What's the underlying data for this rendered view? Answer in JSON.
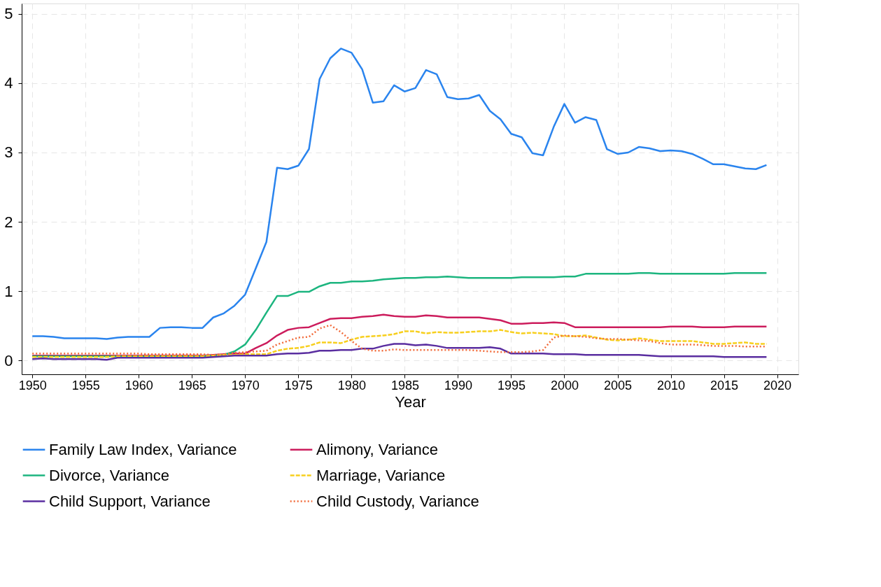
{
  "chart_data": {
    "type": "line",
    "xlabel": "Year",
    "x": [
      1950,
      1951,
      1952,
      1953,
      1954,
      1955,
      1956,
      1957,
      1958,
      1959,
      1960,
      1961,
      1962,
      1963,
      1964,
      1965,
      1966,
      1967,
      1968,
      1969,
      1970,
      1971,
      1972,
      1973,
      1974,
      1975,
      1976,
      1977,
      1978,
      1979,
      1980,
      1981,
      1982,
      1983,
      1984,
      1985,
      1986,
      1987,
      1988,
      1989,
      1990,
      1991,
      1992,
      1993,
      1994,
      1995,
      1996,
      1997,
      1998,
      1999,
      2000,
      2001,
      2002,
      2003,
      2004,
      2005,
      2006,
      2007,
      2008,
      2009,
      2010,
      2011,
      2012,
      2013,
      2014,
      2015,
      2016,
      2017,
      2018,
      2019
    ],
    "xlim": [
      1949,
      2022
    ],
    "xticks": [
      1950,
      1955,
      1960,
      1965,
      1970,
      1975,
      1980,
      1985,
      1990,
      1995,
      2000,
      2005,
      2010,
      2015,
      2020
    ],
    "ylim": [
      -0.2,
      5.15
    ],
    "yticks": [
      0,
      1,
      2,
      3,
      4,
      5
    ],
    "grid": true,
    "legend": "bottom",
    "series": [
      {
        "name": "Family Law Index, Variance",
        "color": "#2a84ee",
        "line_style": "solid",
        "values": [
          0.35,
          0.35,
          0.34,
          0.32,
          0.32,
          0.32,
          0.32,
          0.31,
          0.33,
          0.34,
          0.34,
          0.34,
          0.47,
          0.48,
          0.48,
          0.47,
          0.47,
          0.62,
          0.68,
          0.79,
          0.95,
          1.33,
          1.71,
          2.78,
          2.76,
          2.81,
          3.05,
          4.06,
          4.36,
          4.5,
          4.44,
          4.2,
          3.72,
          3.74,
          3.97,
          3.88,
          3.93,
          4.19,
          4.13,
          3.8,
          3.77,
          3.78,
          3.83,
          3.6,
          3.48,
          3.27,
          3.22,
          2.99,
          2.96,
          3.37,
          3.7,
          3.43,
          3.51,
          3.47,
          3.05,
          2.98,
          3.0,
          3.08,
          3.06,
          3.02,
          3.03,
          3.02,
          2.98,
          2.91,
          2.83,
          2.83,
          2.8,
          2.77,
          2.76,
          2.82
        ]
      },
      {
        "name": "Alimony, Variance",
        "color": "#cc1c5c",
        "line_style": "solid",
        "values": [
          0.07,
          0.07,
          0.07,
          0.07,
          0.07,
          0.07,
          0.07,
          0.07,
          0.07,
          0.07,
          0.07,
          0.07,
          0.07,
          0.07,
          0.07,
          0.07,
          0.07,
          0.08,
          0.09,
          0.1,
          0.1,
          0.18,
          0.25,
          0.36,
          0.44,
          0.47,
          0.48,
          0.54,
          0.6,
          0.61,
          0.61,
          0.63,
          0.64,
          0.66,
          0.64,
          0.63,
          0.63,
          0.65,
          0.64,
          0.62,
          0.62,
          0.62,
          0.62,
          0.6,
          0.58,
          0.53,
          0.53,
          0.54,
          0.54,
          0.55,
          0.54,
          0.48,
          0.48,
          0.48,
          0.48,
          0.48,
          0.48,
          0.48,
          0.48,
          0.48,
          0.49,
          0.49,
          0.49,
          0.48,
          0.48,
          0.48,
          0.49,
          0.49,
          0.49,
          0.49
        ]
      },
      {
        "name": "Divorce, Variance",
        "color": "#1cb57f",
        "line_style": "solid",
        "values": [
          0.06,
          0.06,
          0.06,
          0.06,
          0.06,
          0.06,
          0.06,
          0.06,
          0.06,
          0.06,
          0.06,
          0.06,
          0.06,
          0.06,
          0.06,
          0.06,
          0.06,
          0.07,
          0.08,
          0.13,
          0.23,
          0.44,
          0.69,
          0.93,
          0.93,
          0.99,
          0.99,
          1.07,
          1.12,
          1.12,
          1.14,
          1.14,
          1.15,
          1.17,
          1.18,
          1.19,
          1.19,
          1.2,
          1.2,
          1.21,
          1.2,
          1.19,
          1.19,
          1.19,
          1.19,
          1.19,
          1.2,
          1.2,
          1.2,
          1.2,
          1.21,
          1.21,
          1.25,
          1.25,
          1.25,
          1.25,
          1.25,
          1.26,
          1.26,
          1.25,
          1.25,
          1.25,
          1.25,
          1.25,
          1.25,
          1.25,
          1.26,
          1.26,
          1.26,
          1.26
        ]
      },
      {
        "name": "Marriage, Variance",
        "color": "#f7cf1d",
        "line_style": "dashed",
        "values": [
          0.05,
          0.05,
          0.05,
          0.05,
          0.05,
          0.05,
          0.05,
          0.05,
          0.06,
          0.06,
          0.06,
          0.06,
          0.06,
          0.06,
          0.06,
          0.06,
          0.06,
          0.07,
          0.08,
          0.08,
          0.09,
          0.09,
          0.09,
          0.14,
          0.17,
          0.18,
          0.21,
          0.26,
          0.26,
          0.25,
          0.3,
          0.34,
          0.35,
          0.36,
          0.38,
          0.42,
          0.42,
          0.39,
          0.41,
          0.4,
          0.4,
          0.41,
          0.42,
          0.42,
          0.44,
          0.41,
          0.39,
          0.4,
          0.39,
          0.38,
          0.35,
          0.35,
          0.36,
          0.33,
          0.3,
          0.29,
          0.3,
          0.32,
          0.3,
          0.28,
          0.28,
          0.28,
          0.28,
          0.26,
          0.24,
          0.24,
          0.25,
          0.26,
          0.24,
          0.24
        ]
      },
      {
        "name": "Child Support, Variance",
        "color": "#5a2ea0",
        "line_style": "solid",
        "values": [
          0.02,
          0.03,
          0.02,
          0.02,
          0.02,
          0.02,
          0.02,
          0.01,
          0.04,
          0.04,
          0.04,
          0.04,
          0.04,
          0.04,
          0.04,
          0.04,
          0.04,
          0.05,
          0.06,
          0.07,
          0.07,
          0.07,
          0.07,
          0.09,
          0.1,
          0.1,
          0.11,
          0.14,
          0.14,
          0.15,
          0.15,
          0.17,
          0.17,
          0.21,
          0.24,
          0.24,
          0.22,
          0.23,
          0.21,
          0.18,
          0.18,
          0.18,
          0.18,
          0.19,
          0.17,
          0.1,
          0.1,
          0.1,
          0.1,
          0.09,
          0.09,
          0.09,
          0.08,
          0.08,
          0.08,
          0.08,
          0.08,
          0.08,
          0.07,
          0.06,
          0.06,
          0.06,
          0.06,
          0.06,
          0.06,
          0.05,
          0.05,
          0.05,
          0.05,
          0.05
        ]
      },
      {
        "name": "Child Custody, Variance",
        "color": "#f26b3a",
        "line_style": "dotted",
        "values": [
          0.1,
          0.1,
          0.1,
          0.1,
          0.1,
          0.1,
          0.1,
          0.1,
          0.1,
          0.1,
          0.1,
          0.09,
          0.09,
          0.09,
          0.09,
          0.09,
          0.09,
          0.08,
          0.09,
          0.11,
          0.12,
          0.13,
          0.14,
          0.23,
          0.28,
          0.33,
          0.34,
          0.46,
          0.51,
          0.41,
          0.28,
          0.17,
          0.14,
          0.14,
          0.16,
          0.15,
          0.15,
          0.15,
          0.15,
          0.15,
          0.15,
          0.15,
          0.14,
          0.13,
          0.12,
          0.12,
          0.12,
          0.13,
          0.15,
          0.33,
          0.36,
          0.35,
          0.34,
          0.32,
          0.31,
          0.31,
          0.3,
          0.29,
          0.28,
          0.25,
          0.23,
          0.23,
          0.23,
          0.22,
          0.21,
          0.21,
          0.21,
          0.2,
          0.2,
          0.2
        ]
      }
    ]
  }
}
